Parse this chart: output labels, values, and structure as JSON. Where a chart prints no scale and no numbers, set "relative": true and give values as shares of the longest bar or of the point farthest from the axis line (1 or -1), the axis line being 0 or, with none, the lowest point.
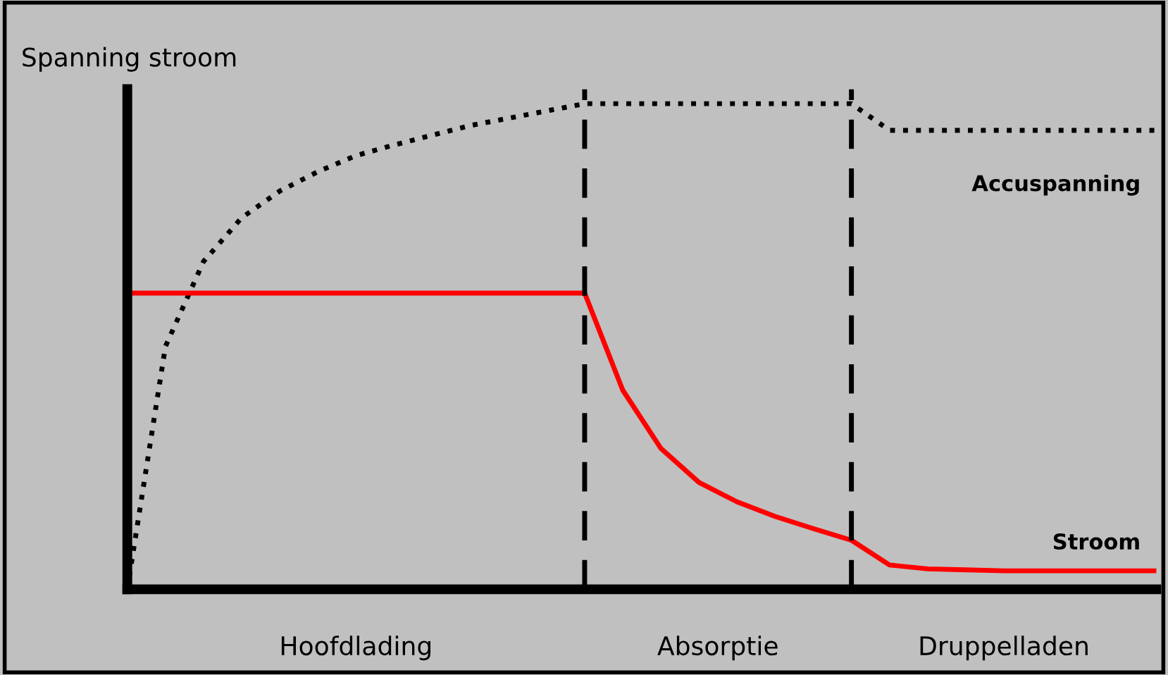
{
  "chart_data": {
    "type": "line",
    "relative": true,
    "ylabel": "Spanning stroom",
    "categories": [
      null,
      null,
      null,
      null,
      null,
      null,
      null,
      null,
      null,
      null,
      null,
      null,
      null,
      null,
      null,
      null,
      null,
      null,
      null,
      null,
      null,
      null,
      null,
      null,
      null,
      null,
      null,
      null
    ],
    "annotations": [
      "Hoofdlading",
      "Absorptie",
      "Druppelladen"
    ],
    "series": [
      {
        "name": "Accuspanning",
        "color": "#000000",
        "line_style": "dotted",
        "values": [
          0,
          0.5,
          0.675,
          0.765,
          0.82,
          0.86,
          0.893,
          0.915,
          0.935,
          0.955,
          0.97,
          0.985,
          1,
          1,
          1,
          1,
          1,
          1,
          1,
          1,
          0.945,
          0.945,
          0.945,
          0.945,
          0.945,
          0.945,
          0.945,
          0.945
        ]
      },
      {
        "name": "Stroom",
        "color": "#ff0000",
        "line_style": "solid",
        "values": [
          0.61,
          0.61,
          0.61,
          0.61,
          0.61,
          0.61,
          0.61,
          0.61,
          0.61,
          0.61,
          0.61,
          0.61,
          0.61,
          0.41,
          0.29,
          0.22,
          0.18,
          0.15,
          0.125,
          0.101,
          0.05,
          0.042,
          0.04,
          0.038,
          0.038,
          0.038,
          0.038,
          0.038
        ]
      }
    ],
    "grid": false,
    "legend": false
  }
}
